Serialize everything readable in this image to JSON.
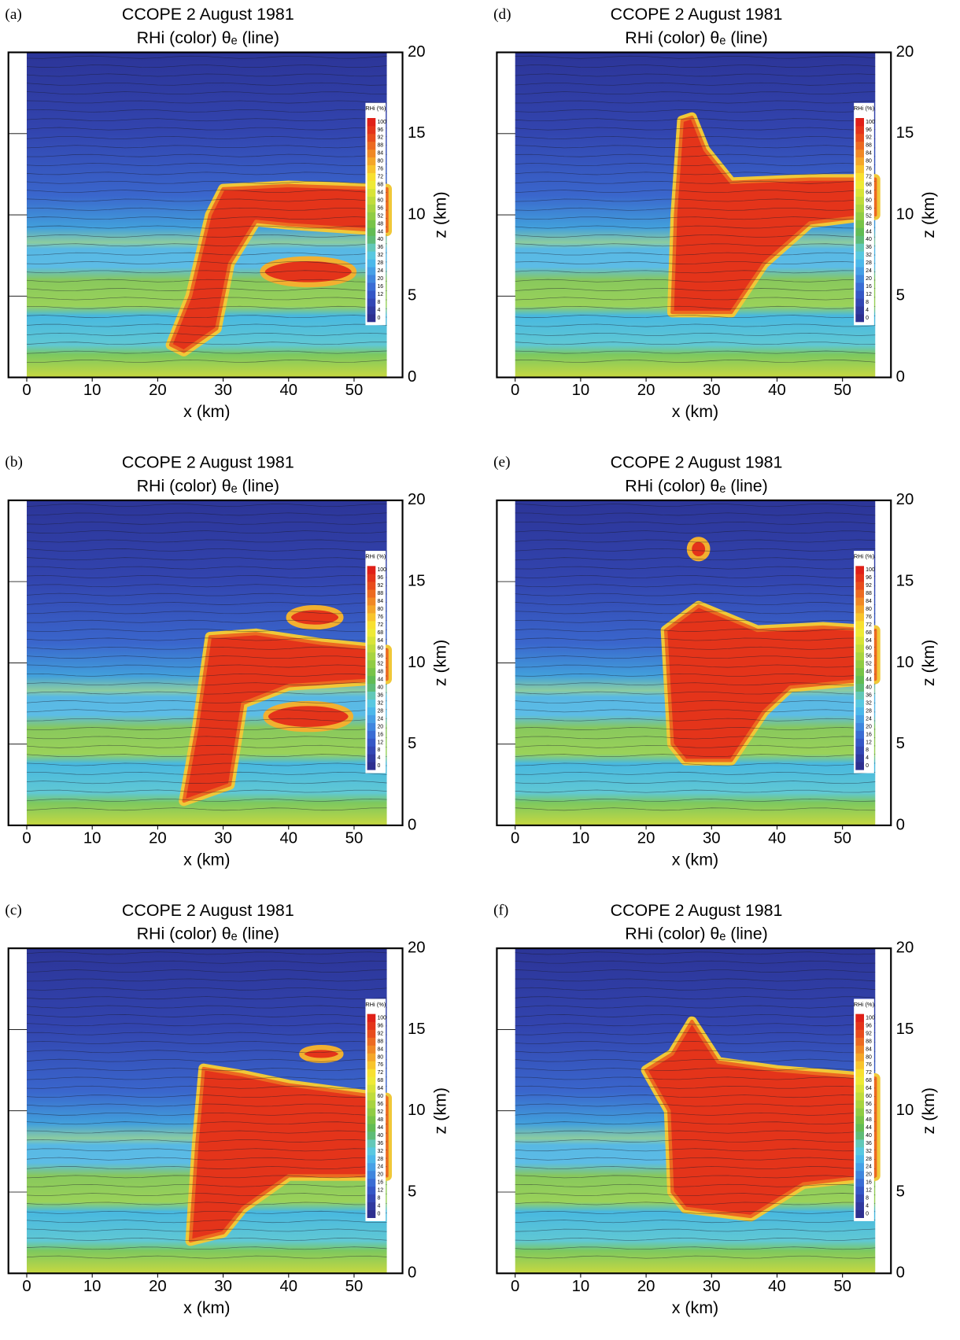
{
  "chart_data": [
    {
      "type": "heatmap",
      "panel_label": "(a)",
      "title": "CCOPE 2 August 1981",
      "subtitle": "RHi (color) θₑ (line)",
      "xlabel": "x (km)",
      "ylabel": "z (km)",
      "xlim": [
        -2.8,
        57.4
      ],
      "ylim": [
        0,
        20
      ],
      "xticks": [
        0,
        10,
        20,
        30,
        40,
        50
      ],
      "yticks": [
        0,
        5,
        10,
        15,
        20
      ],
      "colorbar": {
        "label": "RHi (%)",
        "ticks": [
          0,
          4,
          8,
          12,
          16,
          20,
          24,
          28,
          32,
          36,
          40,
          44,
          48,
          52,
          56,
          60,
          64,
          68,
          72,
          76,
          80,
          84,
          88,
          92,
          96,
          100
        ],
        "colors": [
          "#2e2f8f",
          "#30399f",
          "#3346b4",
          "#3556c6",
          "#3a6cd4",
          "#3f86de",
          "#46a0e6",
          "#4cb8ea",
          "#58c8e0",
          "#62c8b8",
          "#5ebc78",
          "#62bc54",
          "#78c448",
          "#90cc44",
          "#a8d440",
          "#c0dc3c",
          "#d8e438",
          "#eeea36",
          "#f8e030",
          "#f8c42c",
          "#f4a628",
          "#f08824",
          "#ec6a20",
          "#e84c1c",
          "#e4341a",
          "#e02018"
        ]
      }
    },
    {
      "type": "heatmap",
      "panel_label": "(b)",
      "title": "CCOPE 2 August 1981",
      "subtitle": "RHi (color) θₑ (line)",
      "xlabel": "x (km)",
      "ylabel": "z (km)",
      "xlim": [
        -2.8,
        57.4
      ],
      "ylim": [
        0,
        20
      ],
      "xticks": [
        0,
        10,
        20,
        30,
        40,
        50
      ],
      "yticks": [
        0,
        5,
        10,
        15,
        20
      ],
      "colorbar": {
        "label": "RHi (%)",
        "ticks": [
          0,
          4,
          8,
          12,
          16,
          20,
          24,
          28,
          32,
          36,
          40,
          44,
          48,
          52,
          56,
          60,
          64,
          68,
          72,
          76,
          80,
          84,
          88,
          92,
          96,
          100
        ],
        "colors": [
          "#2e2f8f",
          "#30399f",
          "#3346b4",
          "#3556c6",
          "#3a6cd4",
          "#3f86de",
          "#46a0e6",
          "#4cb8ea",
          "#58c8e0",
          "#62c8b8",
          "#5ebc78",
          "#62bc54",
          "#78c448",
          "#90cc44",
          "#a8d440",
          "#c0dc3c",
          "#d8e438",
          "#eeea36",
          "#f8e030",
          "#f8c42c",
          "#f4a628",
          "#f08824",
          "#ec6a20",
          "#e84c1c",
          "#e4341a",
          "#e02018"
        ]
      }
    },
    {
      "type": "heatmap",
      "panel_label": "(c)",
      "title": "CCOPE 2 August 1981",
      "subtitle": "RHi (color) θₑ (line)",
      "xlabel": "x (km)",
      "ylabel": "z (km)",
      "xlim": [
        -2.8,
        57.4
      ],
      "ylim": [
        0,
        20
      ],
      "xticks": [
        0,
        10,
        20,
        30,
        40,
        50
      ],
      "yticks": [
        0,
        5,
        10,
        15,
        20
      ],
      "colorbar": {
        "label": "RHi (%)",
        "ticks": [
          0,
          4,
          8,
          12,
          16,
          20,
          24,
          28,
          32,
          36,
          40,
          44,
          48,
          52,
          56,
          60,
          64,
          68,
          72,
          76,
          80,
          84,
          88,
          92,
          96,
          100
        ],
        "colors": [
          "#2e2f8f",
          "#30399f",
          "#3346b4",
          "#3556c6",
          "#3a6cd4",
          "#3f86de",
          "#46a0e6",
          "#4cb8ea",
          "#58c8e0",
          "#62c8b8",
          "#5ebc78",
          "#62bc54",
          "#78c448",
          "#90cc44",
          "#a8d440",
          "#c0dc3c",
          "#d8e438",
          "#eeea36",
          "#f8e030",
          "#f8c42c",
          "#f4a628",
          "#f08824",
          "#ec6a20",
          "#e84c1c",
          "#e4341a",
          "#e02018"
        ]
      }
    },
    {
      "type": "heatmap",
      "panel_label": "(d)",
      "title": "CCOPE 2 August 1981",
      "subtitle": "RHi (color) θₑ (line)",
      "xlabel": "x (km)",
      "ylabel": "z (km)",
      "xlim": [
        -2.8,
        57.4
      ],
      "ylim": [
        0,
        20
      ],
      "xticks": [
        0,
        10,
        20,
        30,
        40,
        50
      ],
      "yticks": [
        0,
        5,
        10,
        15,
        20
      ],
      "colorbar": {
        "label": "RHi (%)",
        "ticks": [
          0,
          4,
          8,
          12,
          16,
          20,
          24,
          28,
          32,
          36,
          40,
          44,
          48,
          52,
          56,
          60,
          64,
          68,
          72,
          76,
          80,
          84,
          88,
          92,
          96,
          100
        ],
        "colors": [
          "#2e2f8f",
          "#30399f",
          "#3346b4",
          "#3556c6",
          "#3a6cd4",
          "#3f86de",
          "#46a0e6",
          "#4cb8ea",
          "#58c8e0",
          "#62c8b8",
          "#5ebc78",
          "#62bc54",
          "#78c448",
          "#90cc44",
          "#a8d440",
          "#c0dc3c",
          "#d8e438",
          "#eeea36",
          "#f8e030",
          "#f8c42c",
          "#f4a628",
          "#f08824",
          "#ec6a20",
          "#e84c1c",
          "#e4341a",
          "#e02018"
        ]
      }
    },
    {
      "type": "heatmap",
      "panel_label": "(e)",
      "title": "CCOPE 2 August 1981",
      "subtitle": "RHi (color) θₑ (line)",
      "xlabel": "x (km)",
      "ylabel": "z (km)",
      "xlim": [
        -2.8,
        57.4
      ],
      "ylim": [
        0,
        20
      ],
      "xticks": [
        0,
        10,
        20,
        30,
        40,
        50
      ],
      "yticks": [
        0,
        5,
        10,
        15,
        20
      ],
      "colorbar": {
        "label": "RHi (%)",
        "ticks": [
          0,
          4,
          8,
          12,
          16,
          20,
          24,
          28,
          32,
          36,
          40,
          44,
          48,
          52,
          56,
          60,
          64,
          68,
          72,
          76,
          80,
          84,
          88,
          92,
          96,
          100
        ],
        "colors": [
          "#2e2f8f",
          "#30399f",
          "#3346b4",
          "#3556c6",
          "#3a6cd4",
          "#3f86de",
          "#46a0e6",
          "#4cb8ea",
          "#58c8e0",
          "#62c8b8",
          "#5ebc78",
          "#62bc54",
          "#78c448",
          "#90cc44",
          "#a8d440",
          "#c0dc3c",
          "#d8e438",
          "#eeea36",
          "#f8e030",
          "#f8c42c",
          "#f4a628",
          "#f08824",
          "#ec6a20",
          "#e84c1c",
          "#e4341a",
          "#e02018"
        ]
      }
    },
    {
      "type": "heatmap",
      "panel_label": "(f)",
      "title": "CCOPE 2 August 1981",
      "subtitle": "RHi (color) θₑ (line)",
      "xlabel": "x (km)",
      "ylabel": "z (km)",
      "xlim": [
        -2.8,
        57.4
      ],
      "ylim": [
        0,
        20
      ],
      "xticks": [
        0,
        10,
        20,
        30,
        40,
        50
      ],
      "yticks": [
        0,
        5,
        10,
        15,
        20
      ],
      "colorbar": {
        "label": "RHi (%)",
        "ticks": [
          0,
          4,
          8,
          12,
          16,
          20,
          24,
          28,
          32,
          36,
          40,
          44,
          48,
          52,
          56,
          60,
          64,
          68,
          72,
          76,
          80,
          84,
          88,
          92,
          96,
          100
        ],
        "colors": [
          "#2e2f8f",
          "#30399f",
          "#3346b4",
          "#3556c6",
          "#3a6cd4",
          "#3f86de",
          "#46a0e6",
          "#4cb8ea",
          "#58c8e0",
          "#62c8b8",
          "#5ebc78",
          "#62bc54",
          "#78c448",
          "#90cc44",
          "#a8d440",
          "#c0dc3c",
          "#d8e438",
          "#eeea36",
          "#f8e030",
          "#f8c42c",
          "#f4a628",
          "#f08824",
          "#ec6a20",
          "#e84c1c",
          "#e4341a",
          "#e02018"
        ]
      }
    }
  ]
}
